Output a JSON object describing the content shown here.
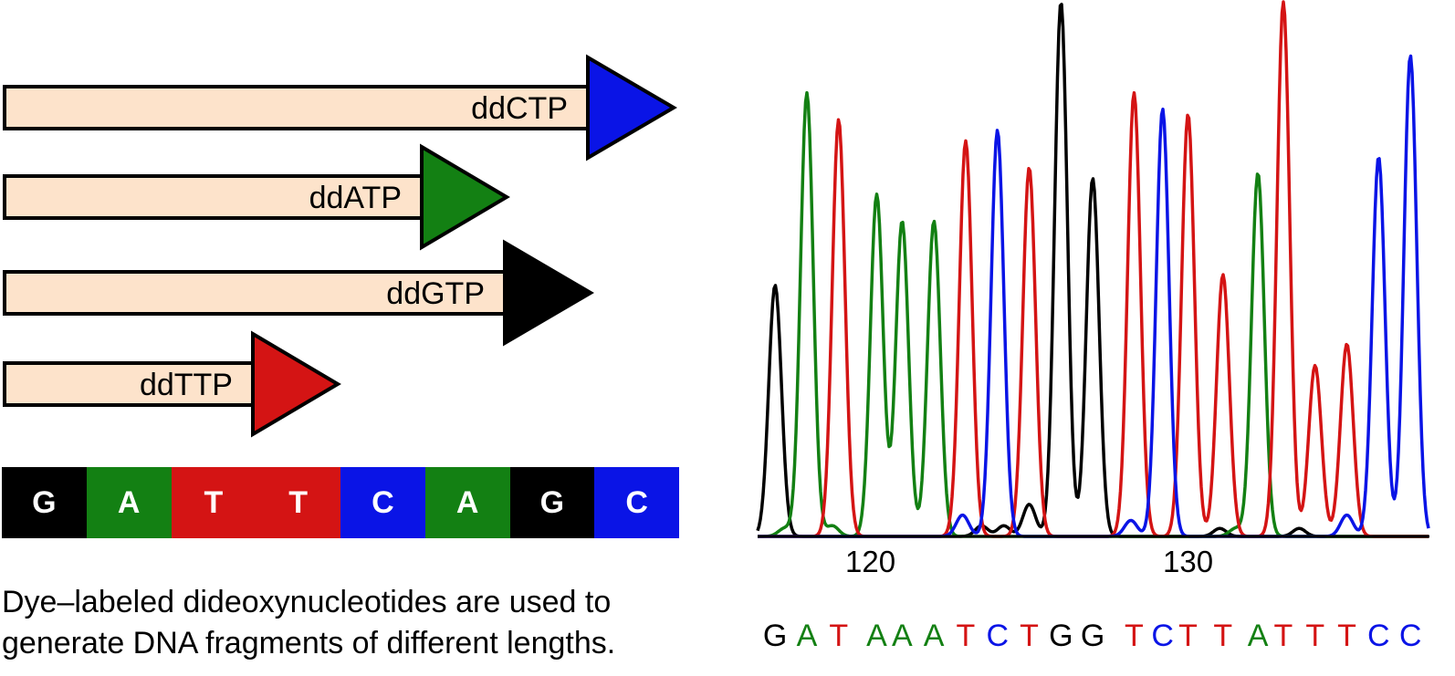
{
  "primers": [
    {
      "label": "ddCTP",
      "base": "C",
      "color": "#0a14e6"
    },
    {
      "label": "ddATP",
      "base": "A",
      "color": "#138013"
    },
    {
      "label": "ddGTP",
      "base": "G",
      "color": "#000000"
    },
    {
      "label": "ddTTP",
      "base": "T",
      "color": "#d41414"
    }
  ],
  "sequence": [
    "G",
    "A",
    "T",
    "T",
    "C",
    "A",
    "G",
    "C"
  ],
  "caption": {
    "line1": "Dye–labeled dideoxynucleotides are used to",
    "line2": "generate DNA fragments of different lengths."
  },
  "base_colors": {
    "A": "#138013",
    "C": "#0a14e6",
    "G": "#000000",
    "T": "#d41414",
    "bar_fill": "#fde3cb"
  },
  "chromatogram": {
    "positions": [
      117,
      118,
      119,
      120,
      121,
      122,
      123,
      124,
      125,
      126,
      127,
      128,
      129,
      130,
      131,
      132,
      133,
      134,
      135,
      136,
      137
    ],
    "x_ticks": [
      120,
      130
    ],
    "tick_labels": [
      "120",
      "130"
    ],
    "base_calls": [
      "G",
      "A",
      "T",
      "A",
      "A",
      "A",
      "T",
      "C",
      "T",
      "G",
      "G",
      "T",
      "C",
      "T",
      "T",
      "A",
      "T",
      "T",
      "T",
      "C",
      "C"
    ],
    "peaks": [
      {
        "pos": 117.0,
        "base": "G",
        "height": 0.47
      },
      {
        "pos": 118.0,
        "base": "A",
        "height": 0.83
      },
      {
        "pos": 119.0,
        "base": "T",
        "height": 0.78
      },
      {
        "pos": 120.2,
        "base": "A",
        "height": 0.64
      },
      {
        "pos": 121.0,
        "base": "A",
        "height": 0.59
      },
      {
        "pos": 122.0,
        "base": "A",
        "height": 0.59
      },
      {
        "pos": 123.0,
        "base": "T",
        "height": 0.74
      },
      {
        "pos": 124.0,
        "base": "C",
        "height": 0.76
      },
      {
        "pos": 125.0,
        "base": "T",
        "height": 0.69
      },
      {
        "pos": 126.0,
        "base": "G",
        "height": 1.0
      },
      {
        "pos": 127.0,
        "base": "G",
        "height": 0.67
      },
      {
        "pos": 128.3,
        "base": "T",
        "height": 0.83
      },
      {
        "pos": 129.2,
        "base": "C",
        "height": 0.8
      },
      {
        "pos": 130.0,
        "base": "T",
        "height": 0.79
      },
      {
        "pos": 131.1,
        "base": "T",
        "height": 0.49
      },
      {
        "pos": 132.2,
        "base": "A",
        "height": 0.68
      },
      {
        "pos": 133.0,
        "base": "T",
        "height": 1.0
      },
      {
        "pos": 134.0,
        "base": "T",
        "height": 0.32
      },
      {
        "pos": 135.0,
        "base": "T",
        "height": 0.36
      },
      {
        "pos": 136.0,
        "base": "C",
        "height": 0.71
      },
      {
        "pos": 137.0,
        "base": "C",
        "height": 0.9
      }
    ],
    "minor_peaks": [
      {
        "pos": 117.3,
        "base": "A",
        "height": 0.015
      },
      {
        "pos": 118.8,
        "base": "A",
        "height": 0.02
      },
      {
        "pos": 122.9,
        "base": "C",
        "height": 0.04
      },
      {
        "pos": 123.5,
        "base": "G",
        "height": 0.02
      },
      {
        "pos": 124.2,
        "base": "G",
        "height": 0.02
      },
      {
        "pos": 125.0,
        "base": "G",
        "height": 0.06
      },
      {
        "pos": 128.2,
        "base": "C",
        "height": 0.03
      },
      {
        "pos": 131.0,
        "base": "G",
        "height": 0.015
      },
      {
        "pos": 131.5,
        "base": "A",
        "height": 0.015
      },
      {
        "pos": 133.5,
        "base": "G",
        "height": 0.015
      },
      {
        "pos": 135.0,
        "base": "C",
        "height": 0.04
      }
    ]
  }
}
